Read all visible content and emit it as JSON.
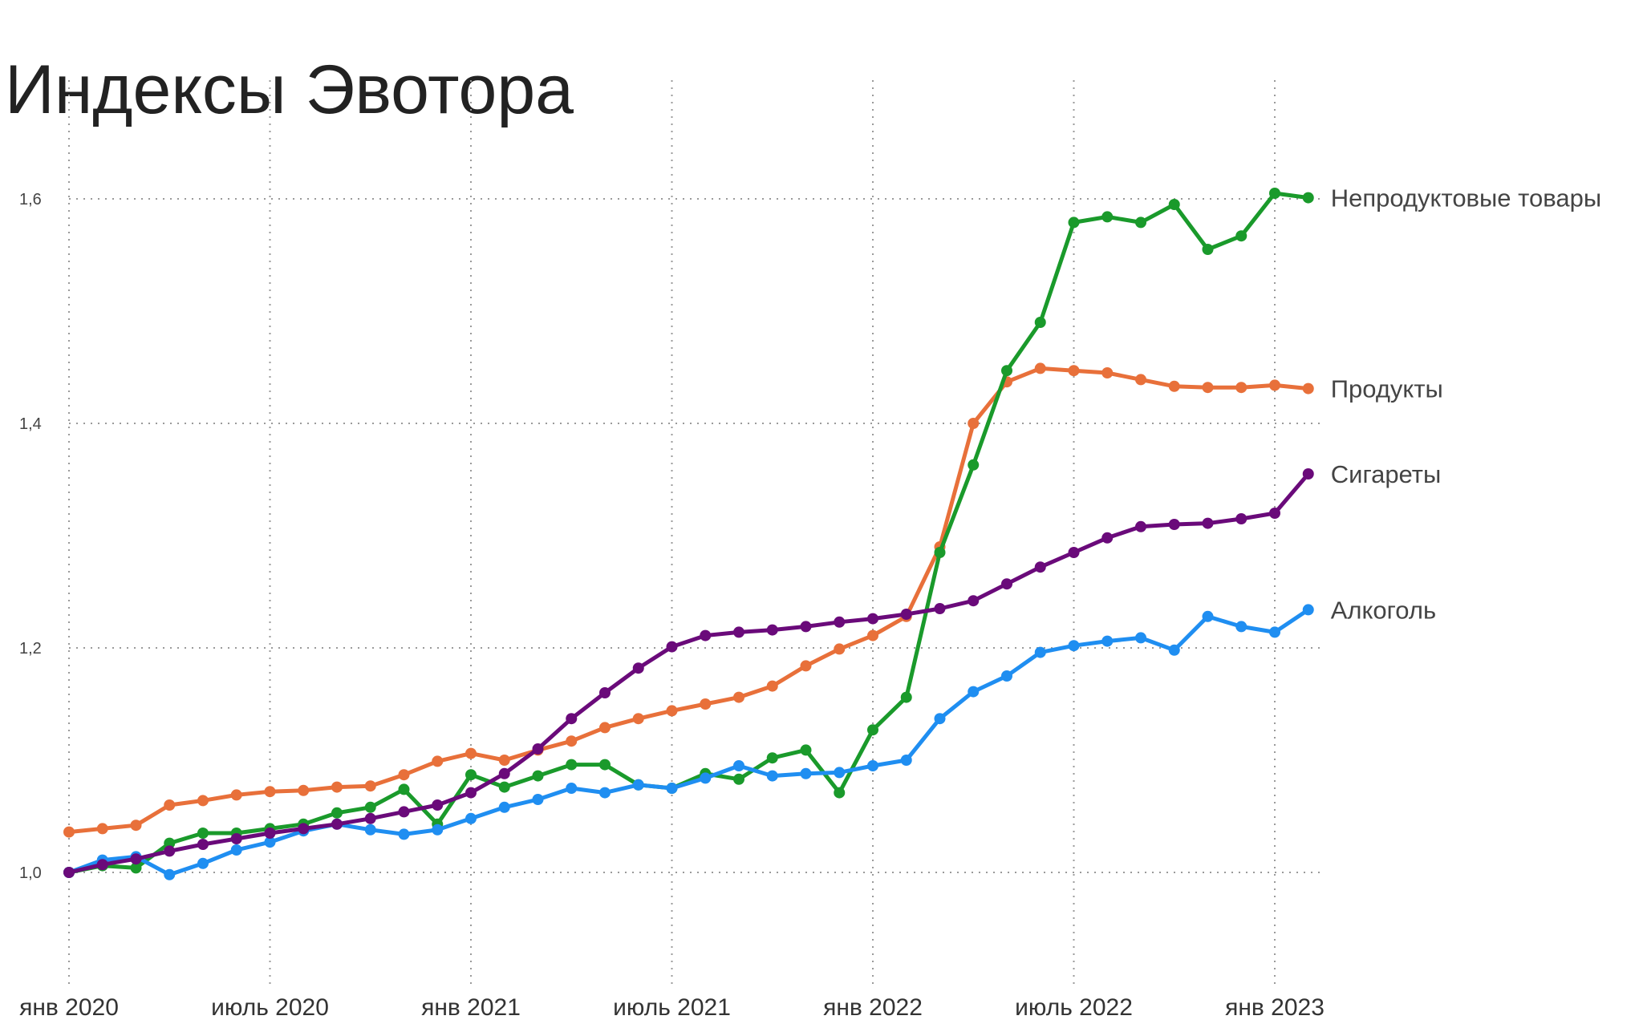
{
  "chart_data": {
    "type": "line",
    "title": "Индексы Эвотора",
    "x_tick_labels": [
      "янв 2020",
      "июль 2020",
      "янв 2021",
      "июль 2021",
      "янв 2022",
      "июль 2022",
      "янв 2023"
    ],
    "y_tick_labels": [
      "1,0",
      "1,2",
      "1,4",
      "1,6"
    ],
    "y_ticks": [
      1.0,
      1.2,
      1.4,
      1.6
    ],
    "ylim": [
      0.9,
      1.7
    ],
    "x_start": "2020-01",
    "x_end": "2023-02",
    "grid": true,
    "legend": "labels at line ends (right)",
    "series": [
      {
        "name": "Непродуктовые товары",
        "color": "#1a9a2b",
        "values": [
          1.0,
          1.006,
          1.004,
          1.026,
          1.035,
          1.035,
          1.039,
          1.043,
          1.053,
          1.058,
          1.074,
          1.043,
          1.087,
          1.076,
          1.086,
          1.096,
          1.096,
          1.078,
          1.075,
          1.088,
          1.083,
          1.102,
          1.109,
          1.071,
          1.127,
          1.156,
          1.285,
          1.363,
          1.447,
          1.49,
          1.579,
          1.584,
          1.579,
          1.595,
          1.555,
          1.567,
          1.605,
          1.601
        ]
      },
      {
        "name": "Продукты",
        "color": "#e8703a",
        "values": [
          1.036,
          1.039,
          1.042,
          1.06,
          1.064,
          1.069,
          1.072,
          1.073,
          1.076,
          1.077,
          1.087,
          1.099,
          1.106,
          1.1,
          1.109,
          1.117,
          1.129,
          1.137,
          1.144,
          1.15,
          1.156,
          1.166,
          1.184,
          1.199,
          1.211,
          1.228,
          1.29,
          1.4,
          1.437,
          1.449,
          1.447,
          1.445,
          1.439,
          1.433,
          1.432,
          1.432,
          1.434,
          1.431
        ]
      },
      {
        "name": "Сигареты",
        "color": "#6a0a7a",
        "values": [
          1.0,
          1.007,
          1.012,
          1.019,
          1.025,
          1.03,
          1.035,
          1.039,
          1.043,
          1.048,
          1.054,
          1.06,
          1.071,
          1.088,
          1.11,
          1.137,
          1.16,
          1.182,
          1.201,
          1.211,
          1.214,
          1.216,
          1.219,
          1.223,
          1.226,
          1.23,
          1.235,
          1.242,
          1.257,
          1.272,
          1.285,
          1.298,
          1.308,
          1.31,
          1.311,
          1.315,
          1.32,
          1.355
        ]
      },
      {
        "name": "Алкоголь",
        "color": "#1f8ef1",
        "values": [
          1.0,
          1.011,
          1.014,
          0.998,
          1.008,
          1.02,
          1.027,
          1.037,
          1.043,
          1.038,
          1.034,
          1.038,
          1.048,
          1.058,
          1.065,
          1.075,
          1.071,
          1.078,
          1.075,
          1.084,
          1.095,
          1.086,
          1.088,
          1.089,
          1.095,
          1.1,
          1.137,
          1.161,
          1.175,
          1.196,
          1.202,
          1.206,
          1.209,
          1.198,
          1.228,
          1.219,
          1.214,
          1.234
        ]
      }
    ]
  }
}
